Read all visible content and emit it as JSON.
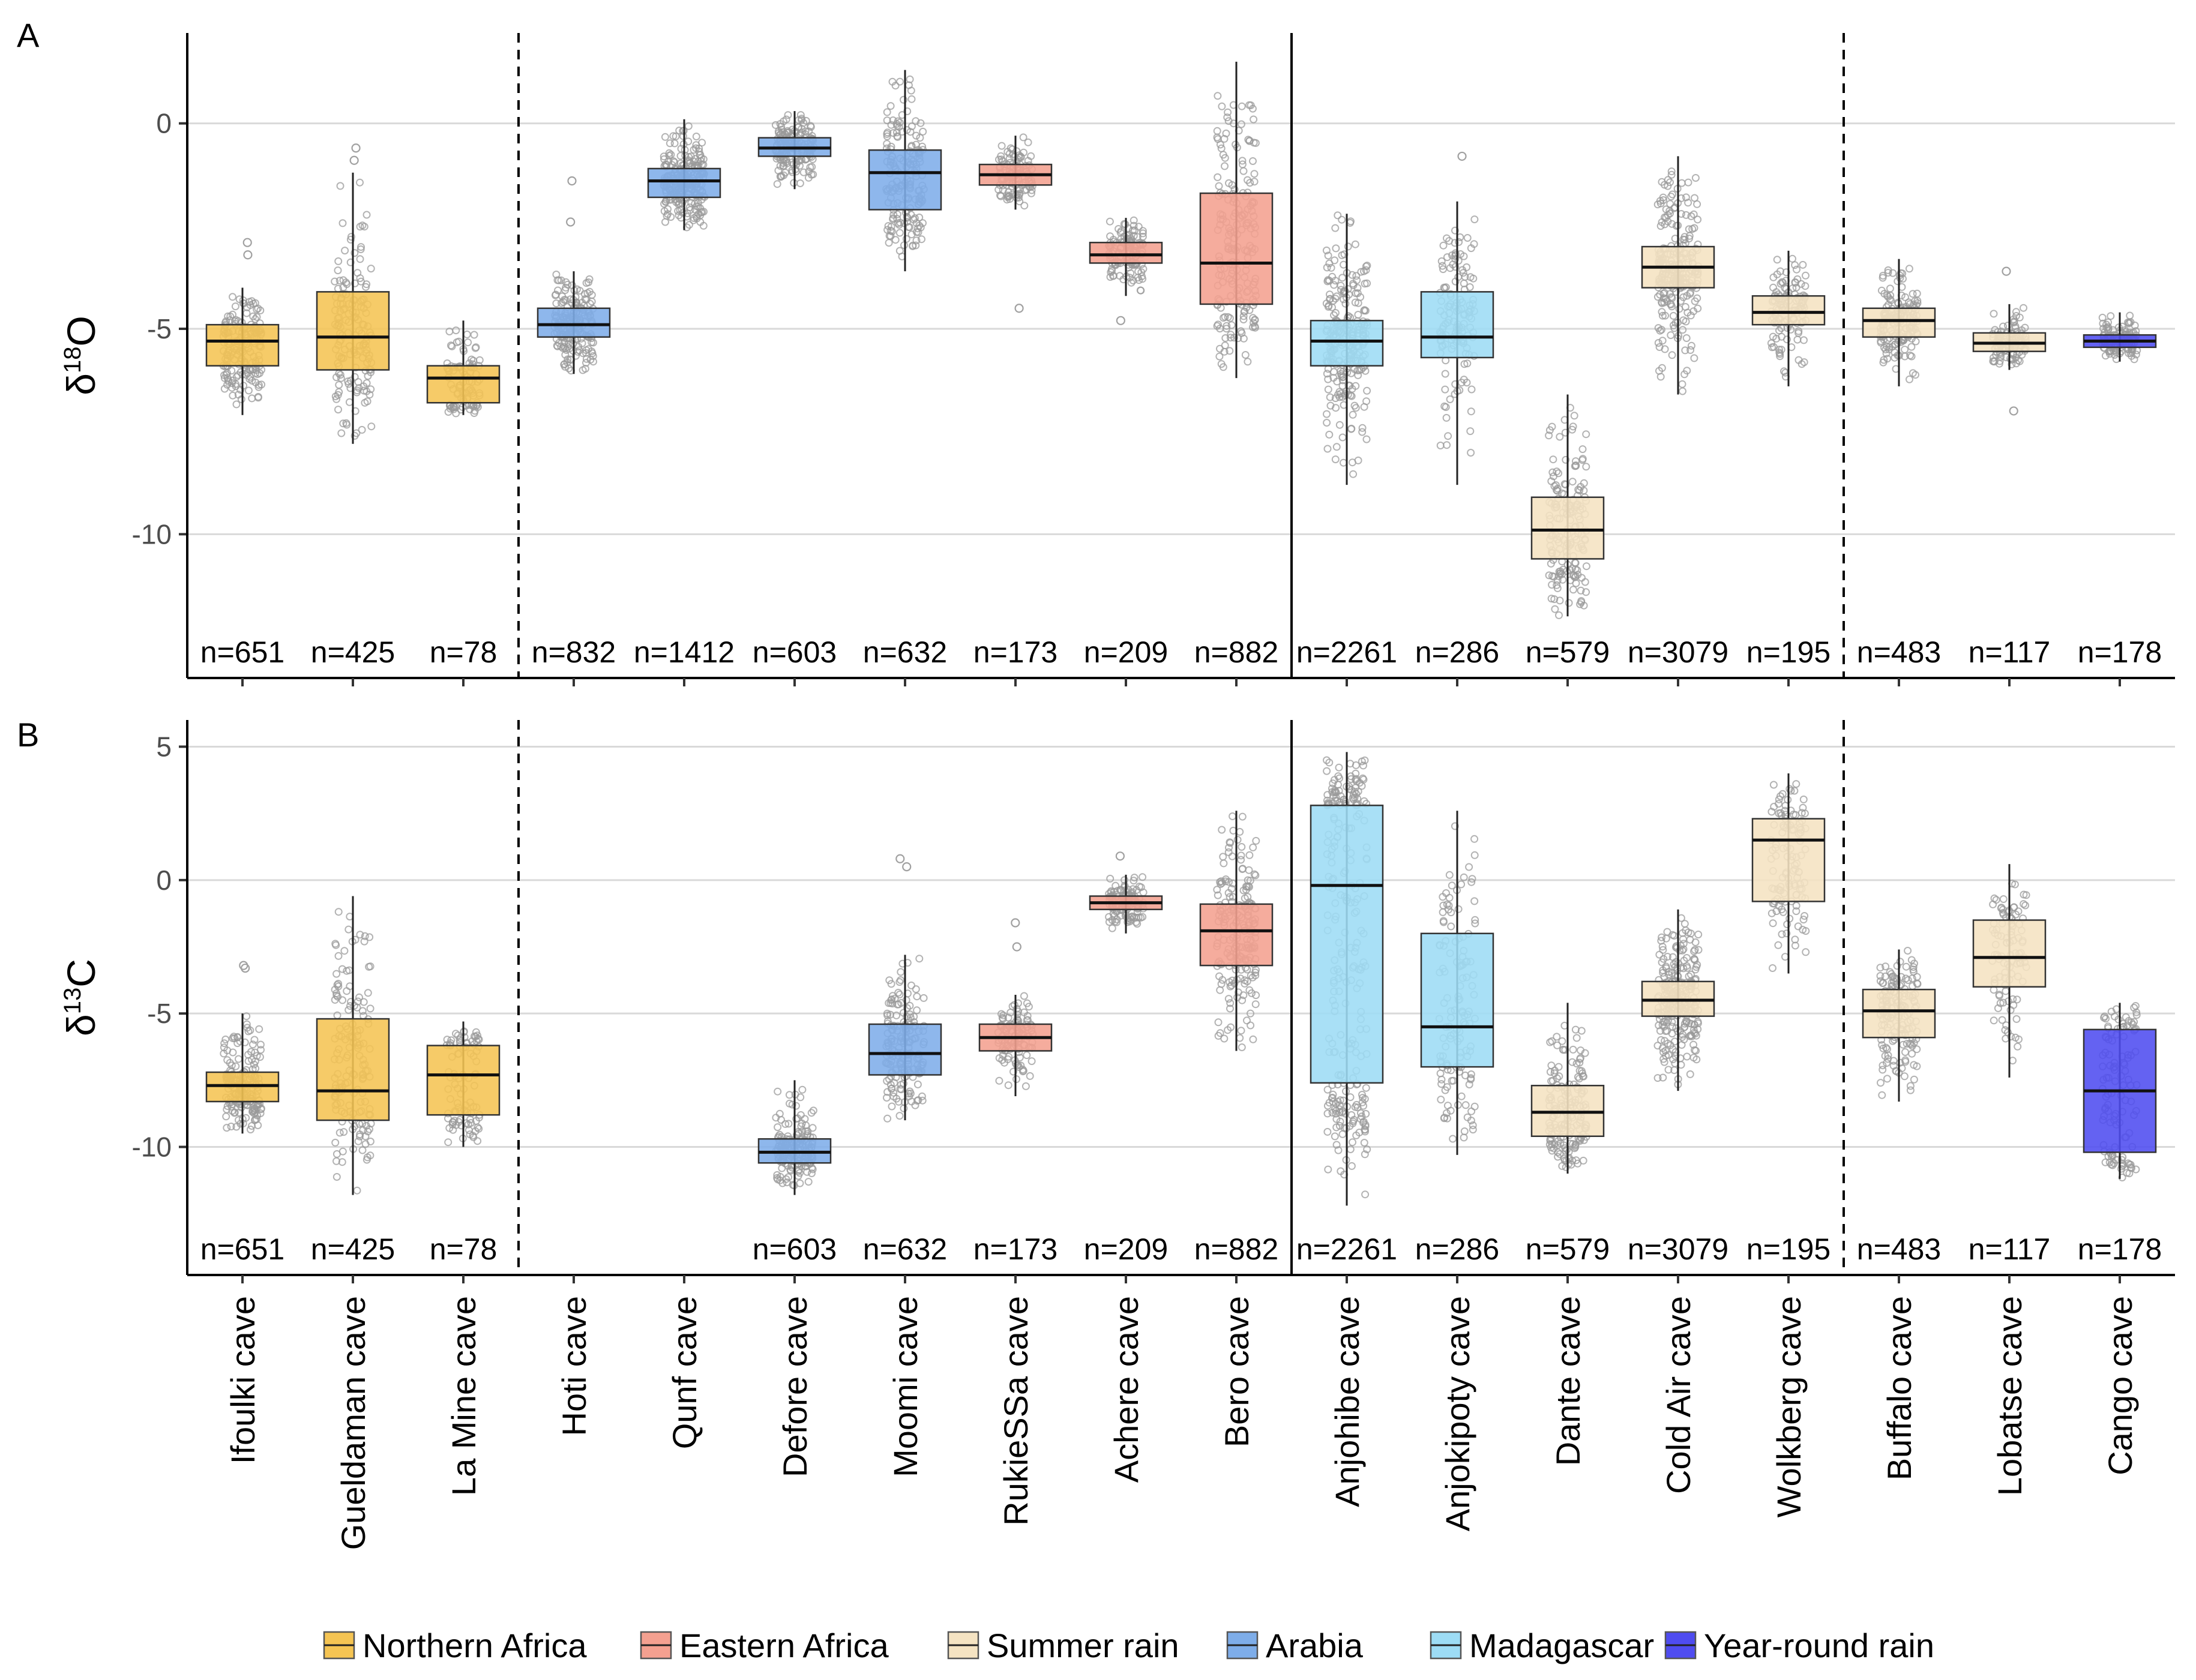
{
  "legend": [
    {
      "name": "Northern Africa",
      "color": "#F5C453"
    },
    {
      "name": "Eastern Africa",
      "color": "#F4A090"
    },
    {
      "name": "Summer rain",
      "color": "#F5E3C2"
    },
    {
      "name": "Arabia",
      "color": "#7EADE9"
    },
    {
      "name": "Madagascar",
      "color": "#9DDCF5"
    },
    {
      "name": "Year-round rain",
      "color": "#4F4CF0"
    }
  ],
  "caves": [
    {
      "name": "Ifoulki cave",
      "group": "Northern Africa"
    },
    {
      "name": "Gueldaman cave",
      "group": "Northern Africa"
    },
    {
      "name": "La Mine cave",
      "group": "Northern Africa"
    },
    {
      "name": "Hoti cave",
      "group": "Arabia"
    },
    {
      "name": "Qunf cave",
      "group": "Arabia"
    },
    {
      "name": "Defore cave",
      "group": "Arabia"
    },
    {
      "name": "Moomi cave",
      "group": "Arabia"
    },
    {
      "name": "RukieSSa cave",
      "group": "Eastern Africa"
    },
    {
      "name": "Achere cave",
      "group": "Eastern Africa"
    },
    {
      "name": "Bero cave",
      "group": "Eastern Africa"
    },
    {
      "name": "Anjohibe cave",
      "group": "Madagascar"
    },
    {
      "name": "Anjokipoty cave",
      "group": "Madagascar"
    },
    {
      "name": "Dante cave",
      "group": "Summer rain"
    },
    {
      "name": "Cold Air cave",
      "group": "Summer rain"
    },
    {
      "name": "Wolkberg cave",
      "group": "Summer rain"
    },
    {
      "name": "Buffalo cave",
      "group": "Summer rain"
    },
    {
      "name": "Lobatse cave",
      "group": "Summer rain"
    },
    {
      "name": "Cango cave",
      "group": "Year-round rain"
    }
  ],
  "separators": [
    {
      "after_index": 2,
      "style": "dashed"
    },
    {
      "after_index": 9,
      "style": "solid"
    },
    {
      "after_index": 14,
      "style": "dashed"
    }
  ],
  "chart_data": [
    {
      "type": "boxplot",
      "panel": "A",
      "ylabel_symbol": "δ",
      "ylabel_sup": "18",
      "ylabel_element": "O",
      "ylim": [
        -13.5,
        2.2
      ],
      "yticks": [
        0,
        -5,
        -10
      ],
      "ytick_labels": [
        "0",
        "-5",
        "-10"
      ],
      "series": [
        {
          "cave": "Ifoulki cave",
          "n_label": "n=651",
          "min": -7.1,
          "q1": -5.9,
          "median": -5.3,
          "q3": -4.9,
          "max": -4.0,
          "outliers": [
            -2.9,
            -3.2
          ]
        },
        {
          "cave": "Gueldaman cave",
          "n_label": "n=425",
          "min": -7.8,
          "q1": -6.0,
          "median": -5.2,
          "q3": -4.1,
          "max": -1.2,
          "outliers": [
            -0.6,
            -0.9
          ]
        },
        {
          "cave": "La Mine cave",
          "n_label": "n=78",
          "min": -7.1,
          "q1": -6.8,
          "median": -6.2,
          "q3": -5.9,
          "max": -4.8,
          "outliers": []
        },
        {
          "cave": "Hoti cave",
          "n_label": "n=832",
          "min": -6.1,
          "q1": -5.2,
          "median": -4.9,
          "q3": -4.5,
          "max": -3.6,
          "outliers": [
            -1.4,
            -2.4
          ]
        },
        {
          "cave": "Qunf cave",
          "n_label": "n=1412",
          "min": -2.6,
          "q1": -1.8,
          "median": -1.4,
          "q3": -1.1,
          "max": 0.1,
          "outliers": []
        },
        {
          "cave": "Defore cave",
          "n_label": "n=603",
          "min": -1.6,
          "q1": -0.8,
          "median": -0.6,
          "q3": -0.35,
          "max": 0.3,
          "outliers": []
        },
        {
          "cave": "Moomi cave",
          "n_label": "n=632",
          "min": -3.6,
          "q1": -2.1,
          "median": -1.2,
          "q3": -0.65,
          "max": 1.3,
          "outliers": []
        },
        {
          "cave": "RukieSSa cave",
          "n_label": "n=173",
          "min": -2.1,
          "q1": -1.5,
          "median": -1.25,
          "q3": -1.0,
          "max": -0.3,
          "outliers": [
            -4.5
          ]
        },
        {
          "cave": "Achere cave",
          "n_label": "n=209",
          "min": -4.2,
          "q1": -3.4,
          "median": -3.2,
          "q3": -2.9,
          "max": -2.3,
          "outliers": [
            -4.8
          ]
        },
        {
          "cave": "Bero cave",
          "n_label": "n=882",
          "min": -6.2,
          "q1": -4.4,
          "median": -3.4,
          "q3": -1.7,
          "max": 1.5,
          "outliers": []
        },
        {
          "cave": "Anjohibe cave",
          "n_label": "n=2261",
          "min": -8.8,
          "q1": -5.9,
          "median": -5.3,
          "q3": -4.8,
          "max": -2.2,
          "outliers": []
        },
        {
          "cave": "Anjokipoty cave",
          "n_label": "n=286",
          "min": -8.8,
          "q1": -5.7,
          "median": -5.2,
          "q3": -4.1,
          "max": -1.9,
          "outliers": [
            -0.8
          ]
        },
        {
          "cave": "Dante cave",
          "n_label": "n=579",
          "min": -12.0,
          "q1": -10.6,
          "median": -9.9,
          "q3": -9.1,
          "max": -6.6,
          "outliers": []
        },
        {
          "cave": "Cold Air cave",
          "n_label": "n=3079",
          "min": -6.6,
          "q1": -4.0,
          "median": -3.5,
          "q3": -3.0,
          "max": -0.8,
          "outliers": []
        },
        {
          "cave": "Wolkberg cave",
          "n_label": "n=195",
          "min": -6.4,
          "q1": -4.9,
          "median": -4.6,
          "q3": -4.2,
          "max": -3.1,
          "outliers": []
        },
        {
          "cave": "Buffalo cave",
          "n_label": "n=483",
          "min": -6.4,
          "q1": -5.2,
          "median": -4.8,
          "q3": -4.5,
          "max": -3.3,
          "outliers": []
        },
        {
          "cave": "Lobatse cave",
          "n_label": "n=117",
          "min": -6.0,
          "q1": -5.55,
          "median": -5.35,
          "q3": -5.1,
          "max": -4.4,
          "outliers": [
            -3.6,
            -7.0
          ]
        },
        {
          "cave": "Cango cave",
          "n_label": "n=178",
          "min": -5.8,
          "q1": -5.45,
          "median": -5.3,
          "q3": -5.15,
          "max": -4.6,
          "outliers": []
        }
      ]
    },
    {
      "type": "boxplot",
      "panel": "B",
      "ylabel_symbol": "δ",
      "ylabel_sup": "13",
      "ylabel_element": "C",
      "ylim": [
        -14.8,
        6.0
      ],
      "yticks": [
        5,
        0,
        -5,
        -10
      ],
      "ytick_labels": [
        "5",
        "0",
        "-5",
        "-10"
      ],
      "series": [
        {
          "cave": "Ifoulki cave",
          "n_label": "n=651",
          "min": -9.5,
          "q1": -8.3,
          "median": -7.7,
          "q3": -7.2,
          "max": -5.0,
          "outliers": [
            -3.2,
            -3.3
          ]
        },
        {
          "cave": "Gueldaman cave",
          "n_label": "n=425",
          "min": -11.8,
          "q1": -9.0,
          "median": -7.9,
          "q3": -5.2,
          "max": -0.6,
          "outliers": []
        },
        {
          "cave": "La Mine cave",
          "n_label": "n=78",
          "min": -10.0,
          "q1": -8.8,
          "median": -7.3,
          "q3": -6.2,
          "max": -5.3,
          "outliers": []
        },
        {
          "cave": "Hoti cave",
          "n_label": "",
          "min": null,
          "q1": null,
          "median": null,
          "q3": null,
          "max": null,
          "outliers": []
        },
        {
          "cave": "Qunf cave",
          "n_label": "",
          "min": null,
          "q1": null,
          "median": null,
          "q3": null,
          "max": null,
          "outliers": []
        },
        {
          "cave": "Defore cave",
          "n_label": "n=603",
          "min": -11.8,
          "q1": -10.6,
          "median": -10.2,
          "q3": -9.7,
          "max": -7.5,
          "outliers": []
        },
        {
          "cave": "Moomi cave",
          "n_label": "n=632",
          "min": -9.0,
          "q1": -7.3,
          "median": -6.5,
          "q3": -5.4,
          "max": -2.8,
          "outliers": [
            0.5,
            0.8
          ]
        },
        {
          "cave": "RukieSSa cave",
          "n_label": "n=173",
          "min": -8.1,
          "q1": -6.4,
          "median": -5.9,
          "q3": -5.4,
          "max": -4.3,
          "outliers": [
            -1.6,
            -2.5
          ]
        },
        {
          "cave": "Achere cave",
          "n_label": "n=209",
          "min": -2.0,
          "q1": -1.1,
          "median": -0.85,
          "q3": -0.6,
          "max": 0.2,
          "outliers": [
            0.9
          ]
        },
        {
          "cave": "Bero cave",
          "n_label": "n=882",
          "min": -6.4,
          "q1": -3.2,
          "median": -1.9,
          "q3": -0.9,
          "max": 2.6,
          "outliers": []
        },
        {
          "cave": "Anjohibe cave",
          "n_label": "n=2261",
          "min": -12.2,
          "q1": -7.6,
          "median": -0.2,
          "q3": 2.8,
          "max": 4.8,
          "outliers": []
        },
        {
          "cave": "Anjokipoty cave",
          "n_label": "n=286",
          "min": -10.3,
          "q1": -7.0,
          "median": -5.5,
          "q3": -2.0,
          "max": 2.6,
          "outliers": []
        },
        {
          "cave": "Dante cave",
          "n_label": "n=579",
          "min": -11.0,
          "q1": -9.6,
          "median": -8.7,
          "q3": -7.7,
          "max": -4.6,
          "outliers": []
        },
        {
          "cave": "Cold Air cave",
          "n_label": "n=3079",
          "min": -7.9,
          "q1": -5.1,
          "median": -4.5,
          "q3": -3.8,
          "max": -1.1,
          "outliers": []
        },
        {
          "cave": "Wolkberg cave",
          "n_label": "n=195",
          "min": -3.5,
          "q1": -0.8,
          "median": 1.5,
          "q3": 2.3,
          "max": 4.0,
          "outliers": []
        },
        {
          "cave": "Buffalo cave",
          "n_label": "n=483",
          "min": -8.3,
          "q1": -5.9,
          "median": -4.9,
          "q3": -4.1,
          "max": -2.6,
          "outliers": []
        },
        {
          "cave": "Lobatse cave",
          "n_label": "n=117",
          "min": -7.4,
          "q1": -4.0,
          "median": -2.9,
          "q3": -1.5,
          "max": 0.6,
          "outliers": []
        },
        {
          "cave": "Cango cave",
          "n_label": "n=178",
          "min": -11.2,
          "q1": -10.2,
          "median": -7.9,
          "q3": -5.6,
          "max": -4.6,
          "outliers": []
        }
      ]
    }
  ]
}
